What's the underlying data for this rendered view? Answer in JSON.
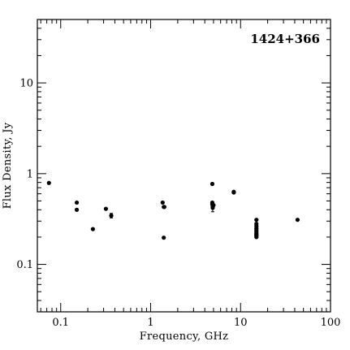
{
  "chart_data": {
    "type": "scatter",
    "title": "1424+366",
    "xlabel": "Frequency, GHz",
    "ylabel": "Flux Density, Jy",
    "x_scale": "log",
    "y_scale": "log",
    "xlim": [
      0.055,
      100
    ],
    "ylim": [
      0.03,
      50
    ],
    "x_ticks": [
      {
        "value": 0.1,
        "label": "0.1"
      },
      {
        "value": 1,
        "label": "1"
      },
      {
        "value": 10,
        "label": "10"
      },
      {
        "value": 100,
        "label": "100"
      }
    ],
    "y_ticks": [
      {
        "value": 0.1,
        "label": "0.1"
      },
      {
        "value": 1,
        "label": "1"
      },
      {
        "value": 10,
        "label": "10"
      }
    ],
    "grid": false,
    "legend": "none",
    "marker_color": "#000000",
    "points": [
      {
        "x": 0.074,
        "y": 0.79
      },
      {
        "x": 0.151,
        "y": 0.48
      },
      {
        "x": 0.151,
        "y": 0.4
      },
      {
        "x": 0.228,
        "y": 0.245
      },
      {
        "x": 0.318,
        "y": 0.41
      },
      {
        "x": 0.365,
        "y": 0.345,
        "err": 0.02
      },
      {
        "x": 1.36,
        "y": 0.48
      },
      {
        "x": 1.4,
        "y": 0.43
      },
      {
        "x": 1.42,
        "y": 0.43
      },
      {
        "x": 1.4,
        "y": 0.197
      },
      {
        "x": 4.85,
        "y": 0.77
      },
      {
        "x": 4.85,
        "y": 0.48
      },
      {
        "x": 4.85,
        "y": 0.46
      },
      {
        "x": 4.9,
        "y": 0.44
      },
      {
        "x": 4.9,
        "y": 0.42,
        "err": 0.04
      },
      {
        "x": 5.0,
        "y": 0.45
      },
      {
        "x": 8.4,
        "y": 0.63
      },
      {
        "x": 8.4,
        "y": 0.62
      },
      {
        "x": 15.0,
        "y": 0.31
      },
      {
        "x": 15.0,
        "y": 0.28
      },
      {
        "x": 15.0,
        "y": 0.265
      },
      {
        "x": 15.0,
        "y": 0.25
      },
      {
        "x": 15.0,
        "y": 0.24
      },
      {
        "x": 15.0,
        "y": 0.23
      },
      {
        "x": 15.0,
        "y": 0.22
      },
      {
        "x": 15.0,
        "y": 0.215
      },
      {
        "x": 15.0,
        "y": 0.21
      },
      {
        "x": 15.0,
        "y": 0.205
      },
      {
        "x": 15.0,
        "y": 0.2
      },
      {
        "x": 43.0,
        "y": 0.31
      }
    ]
  }
}
